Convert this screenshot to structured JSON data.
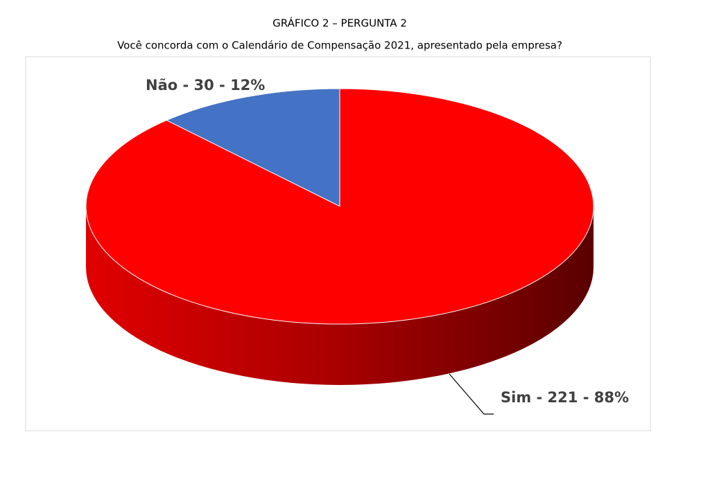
{
  "chart_data": {
    "type": "pie3d",
    "title": "GRÁFICO 2 – PERGUNTA 2",
    "subtitle": "Você concorda com o Calendário de Compensação 2021, apresentado pela empresa?",
    "categories": [
      "Não",
      "Sim"
    ],
    "values": [
      30,
      221
    ],
    "value_labels": [
      "Não - 30 - 12%",
      "Sim -  221  - 88%"
    ],
    "colors": [
      "#4472c4",
      "#ff0000"
    ]
  }
}
